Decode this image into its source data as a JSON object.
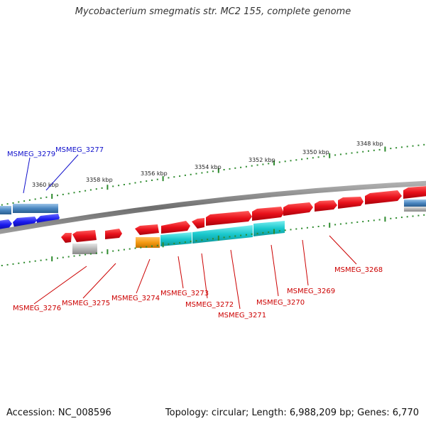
{
  "title": "Mycobacterium smegmatis str. MC2 155, complete genome",
  "footer": {
    "accession": "Accession: NC_008596",
    "summary": "Topology: circular; Length: 6,988,209 bp; Genes: 6,770"
  },
  "colors": {
    "backbone": "#7a7a7a",
    "tick": "#2e8b2e",
    "red_gene": "#e8101a",
    "cyan_gene": "#19c8cc",
    "orange_gene": "#f59a12",
    "gray_gene": "#b5b5b5",
    "blue_gene": "#1a1aee",
    "steel_gene": "#4a86c0",
    "forward_label": "#cc0000",
    "reverse_label": "#1010cc"
  },
  "scale_labels": [
    "3360 kbp",
    "3358 kbp",
    "3356 kbp",
    "3354 kbp",
    "3352 kbp",
    "3350 kbp",
    "3348 kbp"
  ],
  "gene_labels": [
    {
      "text": "MSMEG_3279",
      "strand": "reverse"
    },
    {
      "text": "MSMEG_3277",
      "strand": "reverse"
    },
    {
      "text": "MSMEG_3276",
      "strand": "forward"
    },
    {
      "text": "MSMEG_3275",
      "strand": "forward"
    },
    {
      "text": "MSMEG_3274",
      "strand": "forward"
    },
    {
      "text": "MSMEG_3273",
      "strand": "forward"
    },
    {
      "text": "MSMEG_3272",
      "strand": "forward"
    },
    {
      "text": "MSMEG_3271",
      "strand": "forward"
    },
    {
      "text": "MSMEG_3270",
      "strand": "forward"
    },
    {
      "text": "MSMEG_3269",
      "strand": "forward"
    },
    {
      "text": "MSMEG_3268",
      "strand": "forward"
    }
  ]
}
